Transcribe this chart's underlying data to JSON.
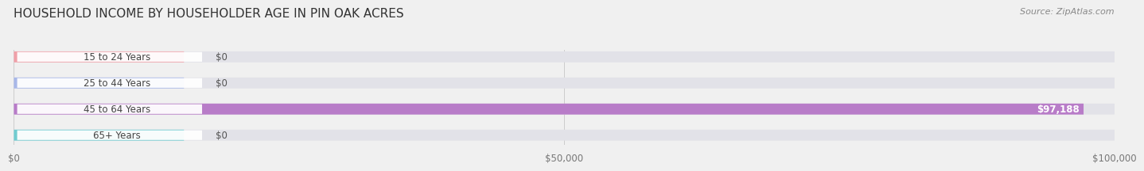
{
  "title": "HOUSEHOLD INCOME BY HOUSEHOLDER AGE IN PIN OAK ACRES",
  "source": "Source: ZipAtlas.com",
  "categories": [
    "15 to 24 Years",
    "25 to 44 Years",
    "45 to 64 Years",
    "65+ Years"
  ],
  "values": [
    0,
    0,
    97188,
    0
  ],
  "bar_colors": [
    "#f0a0a8",
    "#a8b8e8",
    "#b87cc8",
    "#70ccd0"
  ],
  "xlim": [
    0,
    100000
  ],
  "xticks": [
    0,
    50000,
    100000
  ],
  "xtick_labels": [
    "$0",
    "$50,000",
    "$100,000"
  ],
  "background_color": "#f0f0f0",
  "row_bg_light": "#f5f5f5",
  "track_color": "#e8e8e8",
  "value_label_97188": "$97,188",
  "value_label_zero": "$0",
  "title_fontsize": 11,
  "source_fontsize": 8,
  "bar_label_fontsize": 8.5,
  "tick_fontsize": 8.5
}
